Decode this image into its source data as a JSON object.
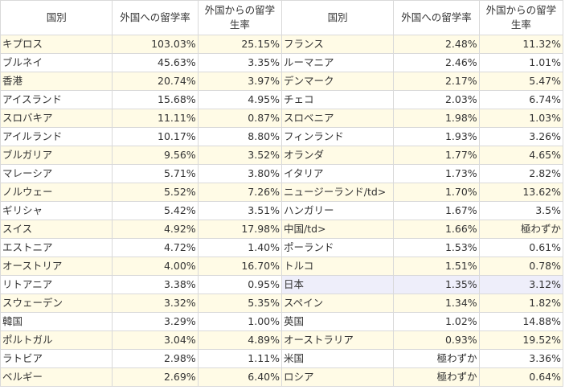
{
  "headers": [
    "国別",
    "外国への留学率",
    "外国からの留学生率",
    "国別",
    "外国への留学率",
    "外国からの留学生率"
  ],
  "rows": [
    [
      "キプロス",
      "103.03%",
      "25.15%",
      "フランス",
      "2.48%",
      "11.32%"
    ],
    [
      "ブルネイ",
      "45.63%",
      "3.35%",
      "ルーマニア",
      "2.46%",
      "1.01%"
    ],
    [
      "香港",
      "20.74%",
      "3.97%",
      "デンマーク",
      "2.17%",
      "5.47%"
    ],
    [
      "アイスランド",
      "15.68%",
      "4.95%",
      "チェコ",
      "2.03%",
      "6.74%"
    ],
    [
      "スロバキア",
      "11.11%",
      "0.87%",
      "スロベニア",
      "1.98%",
      "1.03%"
    ],
    [
      "アイルランド",
      "10.17%",
      "8.80%",
      "フィンランド",
      "1.93%",
      "3.26%"
    ],
    [
      "ブルガリア",
      "9.56%",
      "3.52%",
      "オランダ",
      "1.77%",
      "4.65%"
    ],
    [
      "マレーシア",
      "5.71%",
      "3.80%",
      "イタリア",
      "1.73%",
      "2.82%"
    ],
    [
      "ノルウェー",
      "5.52%",
      "7.26%",
      "ニュージーランド/td>",
      "1.70%",
      "13.62%"
    ],
    [
      "ギリシャ",
      "5.42%",
      "3.51%",
      "ハンガリー",
      "1.67%",
      "3.5%"
    ],
    [
      "スイス",
      "4.92%",
      "17.98%",
      "中国/td>",
      "1.66%",
      "極わずか"
    ],
    [
      "エストニア",
      "4.72%",
      "1.40%",
      "ポーランド",
      "1.53%",
      "0.61%"
    ],
    [
      "オーストリア",
      "4.00%",
      "16.70%",
      "トルコ",
      "1.51%",
      "0.78%"
    ],
    [
      "リトアニア",
      "3.38%",
      "0.95%",
      "日本",
      "1.35%",
      "3.12%"
    ],
    [
      "スウェーデン",
      "3.32%",
      "5.35%",
      "スペイン",
      "1.34%",
      "1.82%"
    ],
    [
      "韓国",
      "3.29%",
      "1.00%",
      "英国",
      "1.02%",
      "14.88%"
    ],
    [
      "ポルトガル",
      "3.04%",
      "4.89%",
      "オーストラリア",
      "0.93%",
      "19.52%"
    ],
    [
      "ラトビア",
      "2.98%",
      "1.11%",
      "米国",
      "極わずか",
      "3.36%"
    ],
    [
      "ベルギー",
      "2.69%",
      "6.40%",
      "ロシア",
      "極わずか",
      "0.64%"
    ]
  ]
}
